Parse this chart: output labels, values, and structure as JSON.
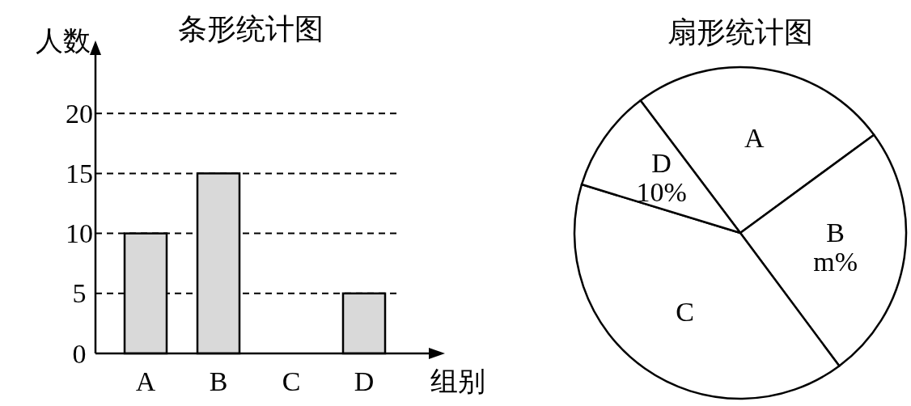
{
  "chart_data": [
    {
      "type": "bar",
      "title": "条形统计图",
      "ylabel": "人数",
      "xlabel": "组别",
      "categories": [
        "A",
        "B",
        "C",
        "D"
      ],
      "values": [
        10,
        15,
        null,
        5
      ],
      "color": "#d9d9d9",
      "ylim": [
        0,
        25
      ],
      "yticks": [
        0,
        5,
        10,
        15,
        20
      ],
      "grid": "y"
    },
    {
      "type": "pie",
      "title": "扇形统计图",
      "categories": [
        "A",
        "B",
        "C",
        "D"
      ],
      "values": [
        25.2,
        24.9,
        39.9,
        10
      ],
      "value_labels": [
        null,
        "m%",
        null,
        "10%"
      ],
      "colors": [
        "#ffffff",
        "#ffffff",
        "#ffffff",
        "#ffffff"
      ]
    }
  ]
}
